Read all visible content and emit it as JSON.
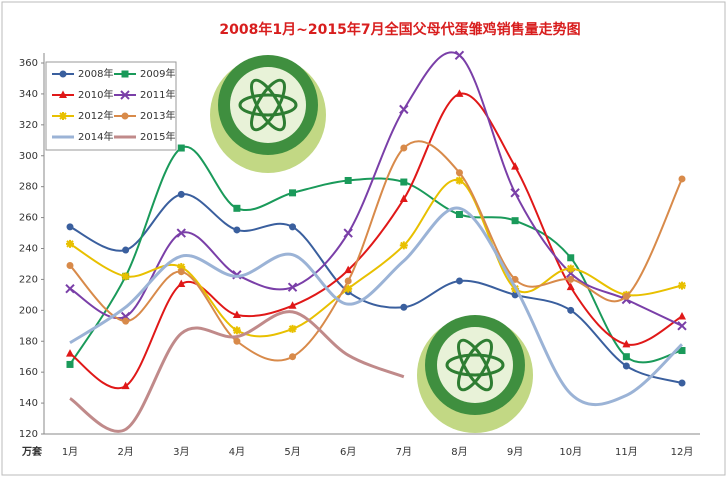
{
  "chart_data": {
    "type": "line",
    "title": "2008年1月~2015年7月全国父母代蛋雏鸡销售量走势图",
    "y_unit": "万套",
    "categories": [
      "1月",
      "2月",
      "3月",
      "4月",
      "5月",
      "6月",
      "7月",
      "8月",
      "9月",
      "10月",
      "11月",
      "12月"
    ],
    "ylim": [
      120,
      360
    ],
    "yticks": [
      120,
      140,
      160,
      180,
      200,
      220,
      240,
      260,
      280,
      300,
      320,
      340,
      360
    ],
    "grid": false,
    "series": [
      {
        "name": "2008年",
        "color": "#3a5f9e",
        "marker": "circle",
        "values": [
          254,
          239,
          275,
          252,
          254,
          212,
          202,
          219,
          210,
          200,
          164,
          153
        ]
      },
      {
        "name": "2009年",
        "color": "#1a9a5a",
        "marker": "square",
        "values": [
          165,
          222,
          305,
          266,
          276,
          284,
          283,
          262,
          258,
          234,
          170,
          174
        ]
      },
      {
        "name": "2010年",
        "color": "#e01818",
        "marker": "triangle",
        "values": [
          172,
          151,
          217,
          197,
          203,
          226,
          272,
          340,
          293,
          215,
          178,
          196
        ]
      },
      {
        "name": "2011年",
        "color": "#7a3fa8",
        "marker": "cross",
        "values": [
          214,
          196,
          250,
          223,
          215,
          250,
          330,
          365,
          276,
          224,
          207,
          190
        ]
      },
      {
        "name": "2012年",
        "color": "#e8c000",
        "marker": "star",
        "values": [
          243,
          222,
          228,
          187,
          188,
          214,
          242,
          284,
          214,
          227,
          210,
          216
        ]
      },
      {
        "name": "2013年",
        "color": "#d88a4a",
        "marker": "circle",
        "values": [
          229,
          193,
          225,
          180,
          170,
          219,
          305,
          289,
          220,
          220,
          209,
          285
        ]
      },
      {
        "name": "2014年",
        "color": "#9bb3d6",
        "marker": "none",
        "values": [
          179,
          202,
          235,
          222,
          236,
          204,
          232,
          266,
          215,
          146,
          145,
          178
        ]
      },
      {
        "name": "2015年",
        "color": "#c08a8a",
        "marker": "none",
        "values": [
          143,
          123,
          185,
          183,
          199,
          171,
          157,
          null,
          null,
          null,
          null,
          null
        ]
      }
    ]
  }
}
